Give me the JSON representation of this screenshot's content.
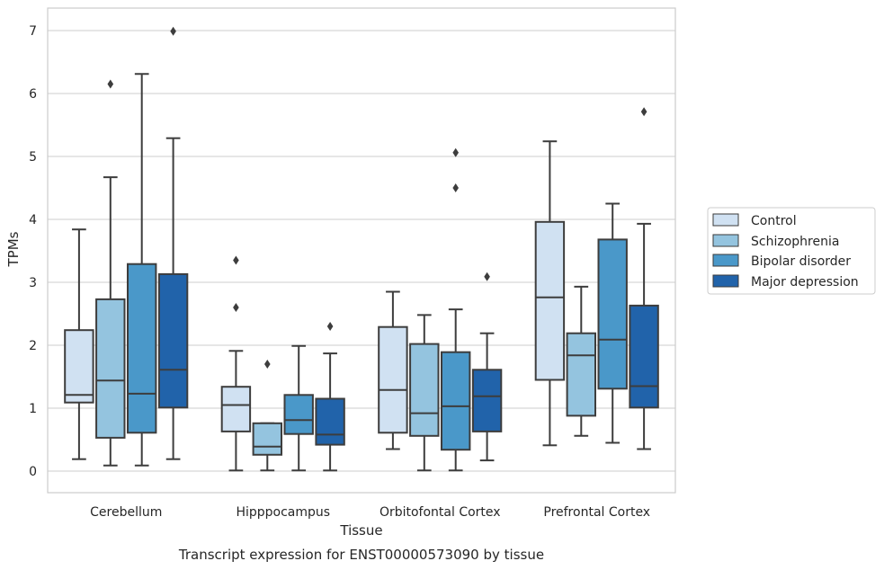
{
  "chart_data": {
    "type": "box",
    "caption": "Transcript expression for ENST00000573090 by tissue",
    "xlabel": "Tissue",
    "ylabel": "TPMs",
    "ylim": [
      -0.33,
      7.35
    ],
    "yticks": [
      0,
      1,
      2,
      3,
      4,
      5,
      6,
      7
    ],
    "grid": true,
    "legend_position": "right",
    "categories": [
      "Cerebellum",
      "Hipppocampus",
      "Orbitofontal Cortex",
      "Prefrontal Cortex"
    ],
    "series": [
      {
        "name": "Control",
        "color": "#d0e1f2",
        "boxes": [
          {
            "whisker_low": 0.19,
            "q1": 1.09,
            "median": 1.21,
            "q3": 2.24,
            "whisker_high": 3.84,
            "outliers": []
          },
          {
            "whisker_low": 0.01,
            "q1": 0.63,
            "median": 1.05,
            "q3": 1.34,
            "whisker_high": 1.91,
            "outliers": [
              2.6,
              3.35
            ]
          },
          {
            "whisker_low": 0.35,
            "q1": 0.61,
            "median": 1.29,
            "q3": 2.29,
            "whisker_high": 2.85,
            "outliers": []
          },
          {
            "whisker_low": 0.41,
            "q1": 1.45,
            "median": 2.76,
            "q3": 3.96,
            "whisker_high": 5.24,
            "outliers": []
          }
        ]
      },
      {
        "name": "Schizophrenia",
        "color": "#94c4df",
        "boxes": [
          {
            "whisker_low": 0.09,
            "q1": 0.53,
            "median": 1.44,
            "q3": 2.73,
            "whisker_high": 4.67,
            "outliers": [
              6.15
            ]
          },
          {
            "whisker_low": 0.01,
            "q1": 0.26,
            "median": 0.39,
            "q3": 0.76,
            "whisker_high": 0.76,
            "outliers": [
              1.7
            ]
          },
          {
            "whisker_low": 0.01,
            "q1": 0.56,
            "median": 0.92,
            "q3": 2.02,
            "whisker_high": 2.48,
            "outliers": []
          },
          {
            "whisker_low": 0.56,
            "q1": 0.88,
            "median": 1.84,
            "q3": 2.19,
            "whisker_high": 2.93,
            "outliers": []
          }
        ]
      },
      {
        "name": "Bipolar disorder",
        "color": "#4a98c9",
        "boxes": [
          {
            "whisker_low": 0.09,
            "q1": 0.61,
            "median": 1.23,
            "q3": 3.29,
            "whisker_high": 6.31,
            "outliers": []
          },
          {
            "whisker_low": 0.01,
            "q1": 0.59,
            "median": 0.81,
            "q3": 1.21,
            "whisker_high": 1.99,
            "outliers": []
          },
          {
            "whisker_low": 0.01,
            "q1": 0.34,
            "median": 1.03,
            "q3": 1.89,
            "whisker_high": 2.57,
            "outliers": [
              4.5,
              5.06
            ]
          },
          {
            "whisker_low": 0.45,
            "q1": 1.31,
            "median": 2.09,
            "q3": 3.68,
            "whisker_high": 4.25,
            "outliers": []
          }
        ]
      },
      {
        "name": "Major depression",
        "color": "#2163aa",
        "boxes": [
          {
            "whisker_low": 0.19,
            "q1": 1.01,
            "median": 1.61,
            "q3": 3.13,
            "whisker_high": 5.29,
            "outliers": [
              6.99
            ]
          },
          {
            "whisker_low": 0.01,
            "q1": 0.42,
            "median": 0.58,
            "q3": 1.15,
            "whisker_high": 1.87,
            "outliers": [
              2.3
            ]
          },
          {
            "whisker_low": 0.17,
            "q1": 0.63,
            "median": 1.19,
            "q3": 1.61,
            "whisker_high": 2.19,
            "outliers": [
              3.09
            ]
          },
          {
            "whisker_low": 0.35,
            "q1": 1.01,
            "median": 1.35,
            "q3": 2.63,
            "whisker_high": 3.93,
            "outliers": [
              5.71
            ]
          }
        ]
      }
    ]
  }
}
